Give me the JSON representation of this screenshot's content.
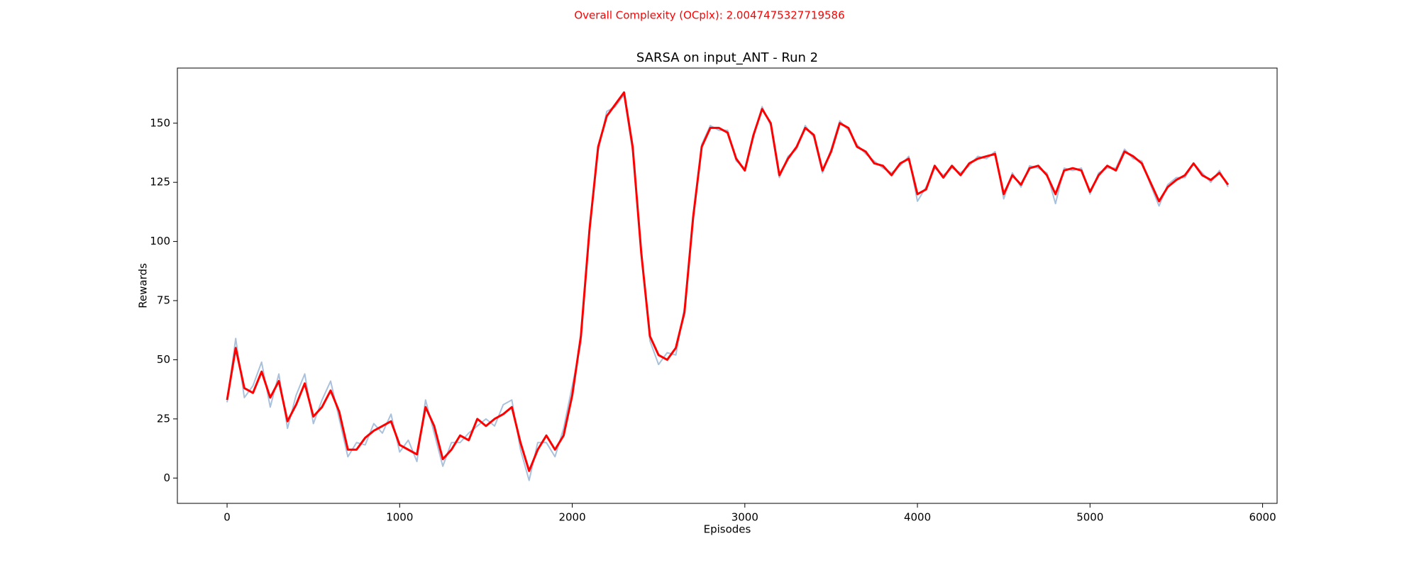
{
  "chart_data": {
    "type": "line",
    "suptitle": "Overall Complexity (OCplx): 2.0047475327719586",
    "title": "SARSA on input_ANT - Run 2",
    "x_label": "Episodes",
    "y_label": "Rewards",
    "x": [
      0,
      50,
      100,
      150,
      200,
      250,
      300,
      350,
      400,
      450,
      500,
      550,
      600,
      650,
      700,
      750,
      800,
      850,
      900,
      950,
      1000,
      1050,
      1100,
      1150,
      1200,
      1250,
      1300,
      1350,
      1400,
      1450,
      1500,
      1550,
      1600,
      1650,
      1700,
      1750,
      1800,
      1850,
      1900,
      1950,
      2000,
      2050,
      2100,
      2150,
      2200,
      2250,
      2300,
      2350,
      2400,
      2450,
      2500,
      2550,
      2600,
      2650,
      2700,
      2750,
      2800,
      2850,
      2900,
      2950,
      3000,
      3050,
      3100,
      3150,
      3200,
      3250,
      3300,
      3350,
      3400,
      3450,
      3500,
      3550,
      3600,
      3650,
      3700,
      3750,
      3800,
      3850,
      3900,
      3950,
      4000,
      4050,
      4100,
      4150,
      4200,
      4250,
      4300,
      4350,
      4400,
      4450,
      4500,
      4550,
      4600,
      4650,
      4700,
      4750,
      4800,
      4850,
      4900,
      4950,
      5000,
      5050,
      5100,
      5150,
      5200,
      5250,
      5300,
      5350,
      5400,
      5450,
      5500,
      5550,
      5600,
      5650,
      5700,
      5750,
      5800
    ],
    "series": [
      {
        "color": "#a9c1dc",
        "width": 2,
        "values": [
          32,
          59,
          34,
          39,
          49,
          30,
          44,
          21,
          35,
          44,
          23,
          33,
          41,
          25,
          9,
          15,
          14,
          23,
          19,
          27,
          11,
          16,
          7,
          33,
          19,
          5,
          15,
          15,
          19,
          22,
          25,
          22,
          31,
          33,
          12,
          -1,
          15,
          15,
          9,
          21,
          39,
          57,
          107,
          138,
          155,
          157,
          162,
          138,
          97,
          58,
          48,
          53,
          52,
          72,
          108,
          141,
          149,
          147,
          147,
          134,
          131,
          144,
          157,
          149,
          127,
          136,
          139,
          149,
          144,
          129,
          139,
          151,
          147,
          141,
          137,
          134,
          131,
          129,
          132,
          136,
          117,
          123,
          131,
          128,
          131,
          129,
          132,
          136,
          135,
          138,
          118,
          129,
          123,
          132,
          131,
          129,
          116,
          131,
          130,
          131,
          120,
          129,
          131,
          131,
          139,
          135,
          134,
          124,
          115,
          124,
          127,
          127,
          133,
          129,
          125,
          130,
          123
        ]
      },
      {
        "color": "#ff0000",
        "width": 3,
        "values": [
          33,
          55,
          38,
          36,
          45,
          34,
          41,
          24,
          31,
          40,
          26,
          30,
          37,
          28,
          12,
          12,
          17,
          20,
          22,
          24,
          14,
          12,
          10,
          30,
          22,
          8,
          12,
          18,
          16,
          25,
          22,
          25,
          27,
          30,
          15,
          3,
          12,
          18,
          12,
          18,
          35,
          60,
          105,
          140,
          153,
          158,
          163,
          140,
          95,
          60,
          52,
          50,
          55,
          70,
          110,
          140,
          148,
          148,
          146,
          135,
          130,
          145,
          156,
          150,
          128,
          135,
          140,
          148,
          145,
          130,
          138,
          150,
          148,
          140,
          138,
          133,
          132,
          128,
          133,
          135,
          120,
          122,
          132,
          127,
          132,
          128,
          133,
          135,
          136,
          137,
          120,
          128,
          124,
          131,
          132,
          128,
          120,
          130,
          131,
          130,
          121,
          128,
          132,
          130,
          138,
          136,
          133,
          125,
          117,
          123,
          126,
          128,
          133,
          128,
          126,
          129,
          124
        ]
      }
    ],
    "xlim": [
      -288,
      6084
    ],
    "ylim": [
      -10.7,
      173.3
    ],
    "xticks": [
      0,
      1000,
      2000,
      3000,
      4000,
      5000,
      6000
    ],
    "yticks": [
      0,
      25,
      50,
      75,
      100,
      125,
      150
    ],
    "grid": false
  }
}
